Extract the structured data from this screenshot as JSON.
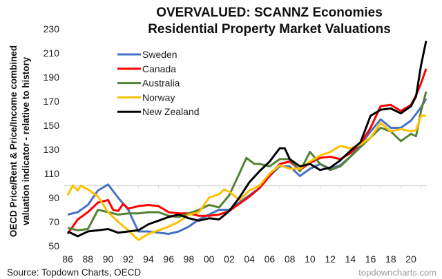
{
  "chart_data": {
    "type": "line",
    "title": [
      "OVERVALUED: SCANNZ Economies",
      "Residential Property Market Valuations"
    ],
    "ylabel": [
      "OECD Price/Rent & Price/Income combined",
      "valuation indicator - relative to history"
    ],
    "xlabel": "",
    "ylim": [
      50,
      230
    ],
    "yticks": [
      50,
      70,
      90,
      110,
      130,
      150,
      170,
      190,
      210,
      230
    ],
    "xlim": [
      1986,
      2021.6
    ],
    "xticks": [
      1986,
      1988,
      1990,
      1992,
      1994,
      1996,
      1998,
      2000,
      2002,
      2004,
      2006,
      2008,
      2010,
      2012,
      2014,
      2016,
      2018,
      2020
    ],
    "xtick_labels": [
      "86",
      "88",
      "90",
      "92",
      "94",
      "96",
      "98",
      "00",
      "02",
      "04",
      "06",
      "08",
      "10",
      "12",
      "14",
      "16",
      "18",
      "20"
    ],
    "x_axis_crosses_at": 100,
    "grid": false,
    "legend": "upper-left",
    "source": "Source: Topdown Charts, OECD",
    "watermark": "topdowncharts.com",
    "series": [
      {
        "name": "Sweden",
        "color": "#4472C4",
        "points": [
          [
            1986,
            76
          ],
          [
            1987,
            78
          ],
          [
            1988,
            84
          ],
          [
            1989,
            96
          ],
          [
            1990,
            101
          ],
          [
            1991,
            90
          ],
          [
            1992,
            80
          ],
          [
            1993,
            62
          ],
          [
            1994,
            62
          ],
          [
            1995,
            61
          ],
          [
            1996,
            60
          ],
          [
            1997,
            62
          ],
          [
            1998,
            66
          ],
          [
            1999,
            72
          ],
          [
            2000,
            76
          ],
          [
            2001,
            80
          ],
          [
            2002,
            80
          ],
          [
            2003,
            86
          ],
          [
            2004,
            92
          ],
          [
            2005,
            98
          ],
          [
            2006,
            108
          ],
          [
            2007,
            116
          ],
          [
            2008,
            116
          ],
          [
            2009,
            108
          ],
          [
            2010,
            114
          ],
          [
            2011,
            118
          ],
          [
            2012,
            114
          ],
          [
            2013,
            117
          ],
          [
            2014,
            124
          ],
          [
            2015,
            134
          ],
          [
            2016,
            145
          ],
          [
            2017,
            155
          ],
          [
            2018,
            148
          ],
          [
            2019,
            148
          ],
          [
            2020,
            154
          ],
          [
            2021,
            165
          ],
          [
            2021.5,
            172
          ]
        ]
      },
      {
        "name": "Canada",
        "color": "#FF0000",
        "points": [
          [
            1986,
            60
          ],
          [
            1987,
            72
          ],
          [
            1988,
            78
          ],
          [
            1989,
            86
          ],
          [
            1990,
            88
          ],
          [
            1990.5,
            80
          ],
          [
            1991,
            79
          ],
          [
            1991.5,
            85
          ],
          [
            1992,
            81
          ],
          [
            1993,
            83
          ],
          [
            1994,
            84
          ],
          [
            1995,
            83
          ],
          [
            1996,
            78
          ],
          [
            1997,
            77
          ],
          [
            1998,
            77
          ],
          [
            1999,
            75
          ],
          [
            2000,
            75
          ],
          [
            2001,
            76
          ],
          [
            2002,
            79
          ],
          [
            2003,
            85
          ],
          [
            2004,
            91
          ],
          [
            2005,
            98
          ],
          [
            2006,
            108
          ],
          [
            2007,
            118
          ],
          [
            2008,
            120
          ],
          [
            2009,
            113
          ],
          [
            2010,
            119
          ],
          [
            2011,
            123
          ],
          [
            2012,
            124
          ],
          [
            2013,
            122
          ],
          [
            2014,
            127
          ],
          [
            2015,
            135
          ],
          [
            2016,
            148
          ],
          [
            2017,
            166
          ],
          [
            2018,
            167
          ],
          [
            2019,
            162
          ],
          [
            2020,
            167
          ],
          [
            2020.5,
            175
          ],
          [
            2021,
            185
          ],
          [
            2021.5,
            197
          ]
        ]
      },
      {
        "name": "Australia",
        "color": "#548235",
        "points": [
          [
            1986,
            65
          ],
          [
            1987,
            63
          ],
          [
            1988,
            64
          ],
          [
            1989,
            80
          ],
          [
            1990,
            78
          ],
          [
            1991,
            76
          ],
          [
            1992,
            77
          ],
          [
            1993,
            77
          ],
          [
            1994,
            78
          ],
          [
            1995,
            78
          ],
          [
            1996,
            75
          ],
          [
            1997,
            74
          ],
          [
            1998,
            77
          ],
          [
            1999,
            80
          ],
          [
            2000,
            84
          ],
          [
            2001,
            82
          ],
          [
            2002,
            92
          ],
          [
            2003,
            110
          ],
          [
            2003.7,
            123
          ],
          [
            2004.5,
            118
          ],
          [
            2005,
            118
          ],
          [
            2006,
            116
          ],
          [
            2007,
            122
          ],
          [
            2008,
            122
          ],
          [
            2009,
            112
          ],
          [
            2010,
            128
          ],
          [
            2011,
            118
          ],
          [
            2012,
            113
          ],
          [
            2013,
            116
          ],
          [
            2014,
            124
          ],
          [
            2015,
            132
          ],
          [
            2016,
            140
          ],
          [
            2017,
            148
          ],
          [
            2018,
            145
          ],
          [
            2019,
            137
          ],
          [
            2020,
            143
          ],
          [
            2020.5,
            141
          ],
          [
            2021,
            162
          ],
          [
            2021.5,
            178
          ]
        ]
      },
      {
        "name": "Norway",
        "color": "#FFC000",
        "points": [
          [
            1986,
            92
          ],
          [
            1986.5,
            100
          ],
          [
            1987,
            96
          ],
          [
            1987.3,
            100
          ],
          [
            1988,
            97
          ],
          [
            1989,
            91
          ],
          [
            1990,
            78
          ],
          [
            1991,
            70
          ],
          [
            1992,
            63
          ],
          [
            1993,
            55
          ],
          [
            1994,
            60
          ],
          [
            1995,
            63
          ],
          [
            1996,
            66
          ],
          [
            1997,
            70
          ],
          [
            1998,
            76
          ],
          [
            1999,
            78
          ],
          [
            2000,
            90
          ],
          [
            2001,
            93
          ],
          [
            2001.5,
            97
          ],
          [
            2002,
            95
          ],
          [
            2003,
            88
          ],
          [
            2004,
            96
          ],
          [
            2005,
            100
          ],
          [
            2006,
            110
          ],
          [
            2007,
            117
          ],
          [
            2008,
            114
          ],
          [
            2009,
            114
          ],
          [
            2010,
            120
          ],
          [
            2011,
            125
          ],
          [
            2012,
            128
          ],
          [
            2013,
            133
          ],
          [
            2014,
            131
          ],
          [
            2015,
            134
          ],
          [
            2016,
            140
          ],
          [
            2017,
            152
          ],
          [
            2018,
            145
          ],
          [
            2019,
            147
          ],
          [
            2020,
            145
          ],
          [
            2020.5,
            146
          ],
          [
            2021,
            158
          ],
          [
            2021.5,
            158
          ]
        ]
      },
      {
        "name": "New Zealand",
        "color": "#000000",
        "points": [
          [
            1986,
            62
          ],
          [
            1987,
            58
          ],
          [
            1988,
            62
          ],
          [
            1989,
            63
          ],
          [
            1990,
            64
          ],
          [
            1991,
            61
          ],
          [
            1992,
            62
          ],
          [
            1993,
            63
          ],
          [
            1994,
            68
          ],
          [
            1995,
            71
          ],
          [
            1996,
            74
          ],
          [
            1997,
            76
          ],
          [
            1998,
            73
          ],
          [
            1999,
            71
          ],
          [
            2000,
            73
          ],
          [
            2001,
            72
          ],
          [
            2002,
            79
          ],
          [
            2003,
            90
          ],
          [
            2004,
            103
          ],
          [
            2005,
            112
          ],
          [
            2006,
            120
          ],
          [
            2007,
            131
          ],
          [
            2007.5,
            131
          ],
          [
            2008,
            122
          ],
          [
            2009,
            116
          ],
          [
            2010,
            118
          ],
          [
            2011,
            113
          ],
          [
            2012,
            115
          ],
          [
            2013,
            121
          ],
          [
            2014,
            129
          ],
          [
            2015,
            136
          ],
          [
            2016,
            158
          ],
          [
            2017,
            163
          ],
          [
            2018,
            164
          ],
          [
            2019,
            160
          ],
          [
            2020,
            166
          ],
          [
            2020.5,
            174
          ],
          [
            2021,
            200
          ],
          [
            2021.5,
            220
          ]
        ]
      }
    ]
  }
}
